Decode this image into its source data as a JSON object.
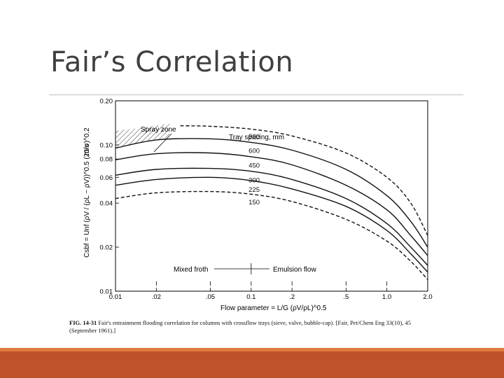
{
  "slide": {
    "title": "Fair’s Correlation"
  },
  "figure": {
    "spray_zone_label": "Spray zone",
    "tray_spacing_label": "Tray spacing, mm",
    "mixed_froth_label": "Mixed froth",
    "emulsion_flow_label": "Emulsion flow",
    "y_unit": "m/s",
    "y_axis_label": "Csbf = Unf (ρV / (ρL − ρV))^0.5 (20/σ)^0.2",
    "x_axis_label": "Flow parameter = L/G (ρV/ρL)^0.5",
    "caption_lead": "FIG. 14-31",
    "caption_text": "Fair's entrainment flooding correlation for columns with crossflow trays (sieve, valve, bubble-cap). [Fair, Pet/Chem Eng 33(10), 45 (September 1961).]"
  },
  "chart_data": {
    "type": "line",
    "x_scale": "log",
    "y_scale": "log",
    "xlim": [
      0.01,
      2.0
    ],
    "ylim": [
      0.01,
      0.2
    ],
    "x_ticks": [
      0.01,
      0.02,
      0.05,
      0.1,
      0.2,
      0.5,
      1.0,
      2.0
    ],
    "x_tick_labels": [
      "0.01",
      ".02",
      ".05",
      "0.1",
      ".2",
      ".5",
      "1.0",
      "2.0"
    ],
    "y_ticks": [
      0.01,
      0.02,
      0.04,
      0.06,
      0.08,
      0.1,
      0.2
    ],
    "y_tick_labels": [
      "0.01",
      "0.02",
      "0.04",
      "0.06",
      "0.08",
      "0.10",
      "0.20"
    ],
    "xlabel": "Flow parameter = L/G (ρV/ρL)^0.5",
    "ylabel": "Csbf = Unf (ρV / (ρL − ρV))^0.5 (20/σ)^0.2 m/s",
    "transition_x": 0.1,
    "series": [
      {
        "name": "900",
        "dashed": true,
        "x": [
          0.03,
          0.05,
          0.1,
          0.2,
          0.5,
          1.0,
          1.5,
          2.0
        ],
        "y": [
          0.135,
          0.134,
          0.128,
          0.115,
          0.088,
          0.06,
          0.04,
          0.024
        ]
      },
      {
        "name": "600",
        "dashed": false,
        "x": [
          0.01,
          0.02,
          0.05,
          0.1,
          0.2,
          0.5,
          1.0,
          1.5,
          2.0
        ],
        "y": [
          0.095,
          0.108,
          0.11,
          0.104,
          0.092,
          0.068,
          0.045,
          0.03,
          0.02
        ]
      },
      {
        "name": "450",
        "dashed": false,
        "x": [
          0.01,
          0.02,
          0.05,
          0.1,
          0.2,
          0.5,
          1.0,
          1.5,
          2.0
        ],
        "y": [
          0.079,
          0.087,
          0.088,
          0.083,
          0.073,
          0.053,
          0.036,
          0.024,
          0.0175
        ]
      },
      {
        "name": "300",
        "dashed": false,
        "x": [
          0.01,
          0.02,
          0.05,
          0.1,
          0.2,
          0.5,
          1.0,
          1.5,
          2.0
        ],
        "y": [
          0.062,
          0.068,
          0.069,
          0.066,
          0.058,
          0.043,
          0.029,
          0.02,
          0.015
        ]
      },
      {
        "name": "225",
        "dashed": false,
        "x": [
          0.01,
          0.02,
          0.05,
          0.1,
          0.2,
          0.5,
          1.0,
          1.5,
          2.0
        ],
        "y": [
          0.053,
          0.058,
          0.06,
          0.057,
          0.05,
          0.038,
          0.026,
          0.018,
          0.0135
        ]
      },
      {
        "name": "150",
        "dashed": true,
        "x": [
          0.01,
          0.02,
          0.05,
          0.1,
          0.2,
          0.5,
          1.0,
          1.5,
          2.0
        ],
        "y": [
          0.043,
          0.047,
          0.048,
          0.046,
          0.041,
          0.031,
          0.022,
          0.016,
          0.012
        ]
      }
    ]
  }
}
